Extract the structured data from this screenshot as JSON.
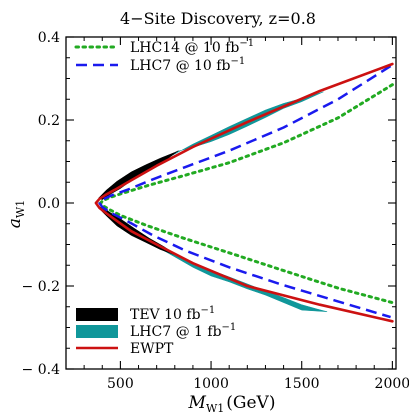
{
  "chart_data": {
    "type": "area",
    "title": "4−Site Discovery, z=0.8",
    "xlabel": {
      "main": "M",
      "sub": "W1",
      "unit": "(GeV)"
    },
    "ylabel": {
      "main": "a",
      "sub": "W1"
    },
    "xlim": [
      200,
      2020
    ],
    "ylim": [
      -0.4,
      0.4
    ],
    "xticks": [
      {
        "value": 500,
        "label": "500"
      },
      {
        "value": 1000,
        "label": "1000"
      },
      {
        "value": 1500,
        "label": "1500"
      },
      {
        "value": 2000,
        "label": "2000"
      }
    ],
    "yticks": [
      {
        "value": 0.4,
        "label": "0.4"
      },
      {
        "value": 0.2,
        "label": "0.2"
      },
      {
        "value": 0.0,
        "label": "0.0"
      },
      {
        "value": -0.2,
        "label": "− 0.2"
      },
      {
        "value": -0.4,
        "label": "− 0.4"
      }
    ],
    "grid": false,
    "legend_top": [
      {
        "id": "lhc14",
        "label": "LHC14  @ 10 fb",
        "sup": "−1",
        "color": "#22aa22",
        "style": "dotted"
      },
      {
        "id": "lhc7_10",
        "label": "LHC7   @ 10 fb",
        "sup": "−1",
        "color": "#1a1aee",
        "style": "dashed"
      }
    ],
    "legend_bottom": [
      {
        "id": "tev",
        "label": "TEV 10 fb",
        "sup": "−1",
        "color": "#000000",
        "style": "fill"
      },
      {
        "id": "lhc7_1",
        "label": "LHC7   @   1 fb",
        "sup": "−1",
        "color": "#10979a",
        "style": "fill"
      },
      {
        "id": "ewpt",
        "label": "EWPT",
        "color": "#cc1111",
        "style": "solid"
      }
    ],
    "series": [
      {
        "id": "ewpt",
        "x": [
          2000,
          1600,
          1200,
          900,
          700,
          560,
          470,
          420,
          385,
          365,
          385,
          420,
          470,
          560,
          700,
          900,
          1200,
          1600,
          2000
        ],
        "y": [
          0.335,
          0.27,
          0.195,
          0.135,
          0.09,
          0.055,
          0.032,
          0.02,
          0.01,
          0.0,
          -0.012,
          -0.024,
          -0.04,
          -0.068,
          -0.1,
          -0.145,
          -0.2,
          -0.245,
          -0.285
        ]
      },
      {
        "id": "lhc7_10",
        "x": [
          1990,
          1700,
          1400,
          1100,
          860,
          680,
          540,
          450,
          400,
          385,
          400,
          450,
          540,
          680,
          860,
          1100,
          1400,
          1700,
          1990
        ],
        "y": [
          0.33,
          0.25,
          0.182,
          0.126,
          0.087,
          0.057,
          0.032,
          0.018,
          0.008,
          0.0,
          -0.01,
          -0.024,
          -0.044,
          -0.078,
          -0.115,
          -0.155,
          -0.198,
          -0.237,
          -0.275
        ]
      },
      {
        "id": "lhc14",
        "x": [
          2000,
          1700,
          1400,
          1100,
          850,
          650,
          500,
          440,
          405,
          390,
          405,
          440,
          500,
          650,
          850,
          1100,
          1400,
          1700,
          2000
        ],
        "y": [
          0.285,
          0.205,
          0.145,
          0.097,
          0.066,
          0.042,
          0.022,
          0.013,
          0.006,
          0.0,
          -0.007,
          -0.016,
          -0.03,
          -0.055,
          -0.085,
          -0.12,
          -0.163,
          -0.205,
          -0.24
        ]
      },
      {
        "id": "lhc7_1",
        "upper": {
          "x": [
            430,
            500,
            600,
            700,
            800,
            900,
            1000,
            1100,
            1200,
            1300,
            1400,
            1500,
            1620,
            1500,
            1400,
            1300,
            1200,
            1100,
            1000,
            900,
            820,
            700,
            600,
            500,
            430
          ],
          "y": [
            0.03,
            0.05,
            0.07,
            0.096,
            0.118,
            0.142,
            0.163,
            0.184,
            0.204,
            0.224,
            0.24,
            0.252,
            0.268,
            0.244,
            0.228,
            0.206,
            0.185,
            0.165,
            0.148,
            0.134,
            0.125,
            0.09,
            0.068,
            0.04,
            0.03
          ]
        },
        "lower": {
          "x": [
            430,
            500,
            600,
            700,
            800,
            900,
            1000,
            1100,
            1200,
            1300,
            1400,
            1500,
            1580,
            1640,
            1500,
            1300,
            1200,
            1100,
            1000,
            900,
            800,
            700,
            600,
            500,
            430
          ],
          "y": [
            -0.03,
            -0.05,
            -0.075,
            -0.098,
            -0.122,
            -0.145,
            -0.162,
            -0.178,
            -0.195,
            -0.212,
            -0.228,
            -0.245,
            -0.255,
            -0.262,
            -0.258,
            -0.222,
            -0.207,
            -0.19,
            -0.176,
            -0.155,
            -0.13,
            -0.105,
            -0.082,
            -0.058,
            -0.03
          ]
        }
      },
      {
        "id": "tev",
        "upper": {
          "x": [
            380,
            420,
            480,
            560,
            640,
            720,
            800,
            820,
            740,
            660,
            580,
            500,
            440,
            400,
            380
          ],
          "y": [
            0.012,
            0.03,
            0.052,
            0.075,
            0.092,
            0.108,
            0.122,
            0.126,
            0.1,
            0.082,
            0.06,
            0.035,
            0.02,
            0.008,
            0.012
          ]
        },
        "lower": {
          "x": [
            380,
            420,
            480,
            560,
            640,
            720,
            800,
            820,
            740,
            660,
            580,
            500,
            440,
            400,
            380
          ],
          "y": [
            -0.012,
            -0.03,
            -0.055,
            -0.078,
            -0.095,
            -0.112,
            -0.125,
            -0.128,
            -0.105,
            -0.085,
            -0.062,
            -0.038,
            -0.022,
            -0.008,
            -0.012
          ]
        }
      }
    ]
  }
}
